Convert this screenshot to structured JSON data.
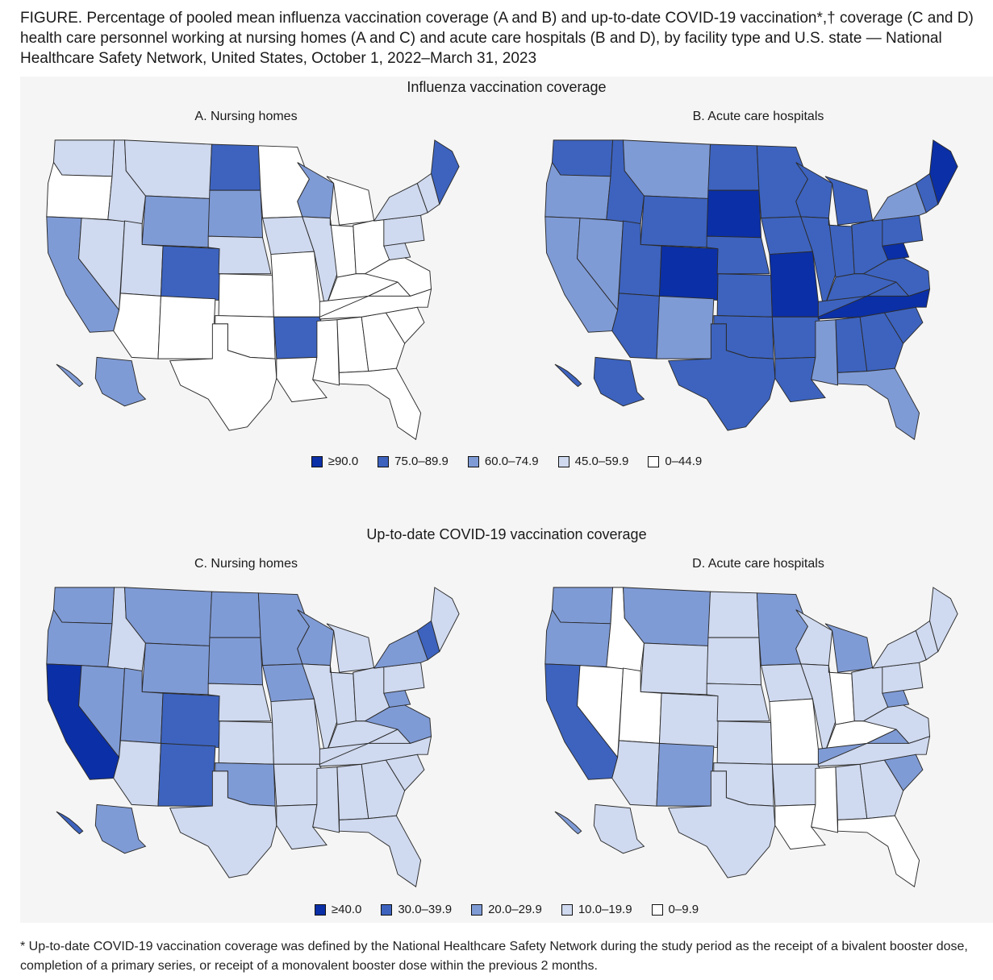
{
  "caption": {
    "line1": "FIGURE. Percentage of pooled mean influenza vaccination coverage (A and B) and up-to-date COVID-19 vaccination*,† coverage (C and D)",
    "line2": "health care personnel working at nursing homes (A and C) and acute care hospitals (B and D), by facility type and U.S. state — National",
    "line3": "Healthcare Safety Network, United States, October 1, 2022–March 31, 2023"
  },
  "flu_section": {
    "title": "Influenza vaccination coverage",
    "map_a_title": "A. Nursing homes",
    "map_b_title": "B. Acute care hospitals",
    "legend": [
      {
        "label": "≥90.0",
        "color": "#0b2fa6"
      },
      {
        "label": "75.0–89.9",
        "color": "#3d63bf"
      },
      {
        "label": "60.0–74.9",
        "color": "#7f9bd6"
      },
      {
        "label": "45.0–59.9",
        "color": "#cfd9ef"
      },
      {
        "label": "0–44.9",
        "color": "#ffffff"
      }
    ]
  },
  "covid_section": {
    "title": "Up-to-date COVID-19 vaccination coverage",
    "map_c_title": "C. Nursing homes",
    "map_d_title": "D. Acute care hospitals",
    "legend": [
      {
        "label": "≥40.0",
        "color": "#0b2fa6"
      },
      {
        "label": "30.0–39.9",
        "color": "#3d63bf"
      },
      {
        "label": "20.0–29.9",
        "color": "#7f9bd6"
      },
      {
        "label": "10.0–19.9",
        "color": "#cfd9ef"
      },
      {
        "label": "0–9.9",
        "color": "#ffffff"
      }
    ]
  },
  "maps": {
    "A": {
      "WA": "l",
      "OR": "w",
      "CA": "m",
      "NV": "l",
      "ID": "l",
      "MT": "l",
      "WY": "m",
      "UT": "l",
      "AZ": "w",
      "CO": "d",
      "NM": "w",
      "ND": "d",
      "SD": "m",
      "NE": "l",
      "KS": "w",
      "OK": "w",
      "TX": "w",
      "MN": "w",
      "IA": "l",
      "MO": "w",
      "AR": "d",
      "LA": "w",
      "WI": "m",
      "IL": "l",
      "MI": "w",
      "IN": "w",
      "OH": "w",
      "KY": "w",
      "TN": "w",
      "MS": "w",
      "AL": "w",
      "GA": "w",
      "FL": "w",
      "SC": "w",
      "NC": "w",
      "VA": "w",
      "WV": "l",
      "PA": "l",
      "NY": "l",
      "NE6": "l",
      "ME": "d",
      "AK": "m",
      "HI": "m"
    },
    "B": {
      "WA": "d",
      "OR": "m",
      "CA": "m",
      "NV": "m",
      "ID": "d",
      "MT": "m",
      "WY": "d",
      "UT": "d",
      "AZ": "d",
      "CO": "v",
      "NM": "m",
      "ND": "d",
      "SD": "v",
      "NE": "d",
      "KS": "d",
      "OK": "d",
      "TX": "d",
      "MN": "d",
      "IA": "d",
      "MO": "v",
      "AR": "d",
      "LA": "d",
      "WI": "d",
      "IL": "d",
      "MI": "d",
      "IN": "d",
      "OH": "d",
      "KY": "d",
      "TN": "d",
      "MS": "m",
      "AL": "d",
      "GA": "d",
      "FL": "m",
      "SC": "d",
      "NC": "v",
      "VA": "d",
      "WV": "v",
      "PA": "d",
      "NY": "m",
      "NE6": "d",
      "ME": "v",
      "AK": "d",
      "HI": "d"
    },
    "C": {
      "WA": "m",
      "OR": "m",
      "CA": "v",
      "NV": "m",
      "ID": "l",
      "MT": "m",
      "WY": "m",
      "UT": "m",
      "AZ": "l",
      "CO": "d",
      "NM": "d",
      "ND": "m",
      "SD": "m",
      "NE": "l",
      "KS": "l",
      "OK": "m",
      "TX": "l",
      "MN": "m",
      "IA": "m",
      "MO": "l",
      "AR": "l",
      "LA": "l",
      "WI": "m",
      "IL": "l",
      "MI": "l",
      "IN": "l",
      "OH": "l",
      "KY": "l",
      "TN": "l",
      "MS": "l",
      "AL": "l",
      "GA": "l",
      "FL": "l",
      "SC": "l",
      "NC": "l",
      "VA": "m",
      "WV": "m",
      "PA": "l",
      "NY": "m",
      "NE6": "d",
      "ME": "l",
      "AK": "m",
      "HI": "d"
    },
    "D": {
      "WA": "m",
      "OR": "m",
      "CA": "d",
      "NV": "w",
      "ID": "w",
      "MT": "m",
      "WY": "l",
      "UT": "w",
      "AZ": "l",
      "CO": "l",
      "NM": "m",
      "ND": "l",
      "SD": "l",
      "NE": "l",
      "KS": "l",
      "OK": "l",
      "TX": "l",
      "MN": "m",
      "IA": "l",
      "MO": "w",
      "AR": "l",
      "LA": "w",
      "WI": "l",
      "IL": "l",
      "MI": "m",
      "IN": "w",
      "OH": "l",
      "KY": "w",
      "TN": "m",
      "MS": "w",
      "AL": "l",
      "GA": "l",
      "FL": "w",
      "SC": "m",
      "NC": "l",
      "VA": "l",
      "WV": "m",
      "PA": "l",
      "NY": "l",
      "NE6": "l",
      "ME": "l",
      "AK": "l",
      "HI": "m"
    }
  },
  "palette": {
    "v": "#0b2fa6",
    "d": "#3d63bf",
    "m": "#7f9bd6",
    "l": "#cfd9ef",
    "w": "#ffffff"
  },
  "footnote": {
    "line1": "* Up-to-date COVID-19 vaccination coverage was defined by the National Healthcare Safety Network during the study period as the receipt of a bivalent booster dose,",
    "line2": "completion of a primary series, or receipt of a monovalent booster dose within the previous 2 months."
  }
}
